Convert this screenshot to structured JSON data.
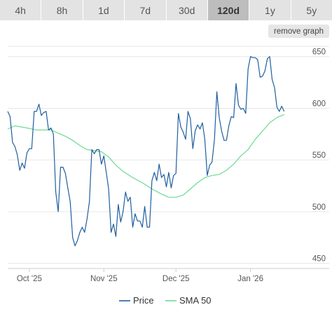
{
  "range_buttons": [
    {
      "label": "4h"
    },
    {
      "label": "8h"
    },
    {
      "label": "1d"
    },
    {
      "label": "7d"
    },
    {
      "label": "30d"
    },
    {
      "label": "120d",
      "active": true
    },
    {
      "label": "1y"
    },
    {
      "label": "5y"
    }
  ],
  "remove_graph_label": "remove graph",
  "colors": {
    "price": "#1f5f9e",
    "sma": "#6cda93",
    "grid": "#e6e6e6",
    "axis": "#cccccc"
  },
  "chart_data": {
    "type": "line",
    "title": "",
    "xlabel": "",
    "ylabel": "",
    "x_axis": {
      "type": "date",
      "ticks": [
        "2025-10-01",
        "2025-11-01",
        "2025-12-01",
        "2026-01-01"
      ],
      "tick_labels": [
        "Oct '25",
        "Nov '25",
        "Dec '25",
        "Jan '26"
      ],
      "range": [
        "2025-09-22",
        "2026-01-25"
      ]
    },
    "y_axis": {
      "ticks": [
        450,
        500,
        550,
        600,
        650
      ],
      "range": [
        445,
        660
      ],
      "side": "right"
    },
    "grid": true,
    "legend": "bottom",
    "series": [
      {
        "name": "Price",
        "color": "#1f5f9e",
        "points": [
          [
            "2025-09-22",
            597
          ],
          [
            "2025-09-23",
            592
          ],
          [
            "2025-09-24",
            567
          ],
          [
            "2025-09-25",
            563
          ],
          [
            "2025-09-26",
            555
          ],
          [
            "2025-09-27",
            540
          ],
          [
            "2025-09-28",
            547
          ],
          [
            "2025-09-29",
            542
          ],
          [
            "2025-09-30",
            557
          ],
          [
            "2025-10-01",
            561
          ],
          [
            "2025-10-02",
            561
          ],
          [
            "2025-10-03",
            597
          ],
          [
            "2025-10-04",
            597
          ],
          [
            "2025-10-05",
            604
          ],
          [
            "2025-10-06",
            593
          ],
          [
            "2025-10-07",
            596
          ],
          [
            "2025-10-08",
            597
          ],
          [
            "2025-10-09",
            579
          ],
          [
            "2025-10-10",
            581
          ],
          [
            "2025-10-11",
            575
          ],
          [
            "2025-10-12",
            519
          ],
          [
            "2025-10-13",
            500
          ],
          [
            "2025-10-14",
            543
          ],
          [
            "2025-10-15",
            543
          ],
          [
            "2025-10-16",
            537
          ],
          [
            "2025-10-17",
            523
          ],
          [
            "2025-10-18",
            510
          ],
          [
            "2025-10-19",
            475
          ],
          [
            "2025-10-20",
            467
          ],
          [
            "2025-10-21",
            472
          ],
          [
            "2025-10-22",
            480
          ],
          [
            "2025-10-23",
            485
          ],
          [
            "2025-10-24",
            480
          ],
          [
            "2025-10-25",
            493
          ],
          [
            "2025-10-26",
            510
          ],
          [
            "2025-10-27",
            560
          ],
          [
            "2025-10-28",
            556
          ],
          [
            "2025-10-29",
            560
          ],
          [
            "2025-10-30",
            560
          ],
          [
            "2025-10-31",
            546
          ],
          [
            "2025-11-01",
            554
          ],
          [
            "2025-11-02",
            538
          ],
          [
            "2025-11-03",
            522
          ],
          [
            "2025-11-04",
            480
          ],
          [
            "2025-11-05",
            488
          ],
          [
            "2025-11-06",
            476
          ],
          [
            "2025-11-07",
            507
          ],
          [
            "2025-11-08",
            490
          ],
          [
            "2025-11-09",
            500
          ],
          [
            "2025-11-10",
            519
          ],
          [
            "2025-11-11",
            510
          ],
          [
            "2025-11-12",
            514
          ],
          [
            "2025-11-13",
            485
          ],
          [
            "2025-11-14",
            498
          ],
          [
            "2025-11-15",
            491
          ],
          [
            "2025-11-16",
            491
          ],
          [
            "2025-11-17",
            485
          ],
          [
            "2025-11-18",
            505
          ],
          [
            "2025-11-19",
            485
          ],
          [
            "2025-11-20",
            485
          ],
          [
            "2025-11-21",
            530
          ],
          [
            "2025-11-22",
            538
          ],
          [
            "2025-11-23",
            530
          ],
          [
            "2025-11-24",
            546
          ],
          [
            "2025-11-25",
            533
          ],
          [
            "2025-11-26",
            536
          ],
          [
            "2025-11-27",
            524
          ],
          [
            "2025-11-28",
            538
          ],
          [
            "2025-11-29",
            523
          ],
          [
            "2025-11-30",
            535
          ],
          [
            "2025-12-01",
            537
          ],
          [
            "2025-12-02",
            595
          ],
          [
            "2025-12-03",
            582
          ],
          [
            "2025-12-04",
            577
          ],
          [
            "2025-12-05",
            570
          ],
          [
            "2025-12-06",
            597
          ],
          [
            "2025-12-07",
            590
          ],
          [
            "2025-12-08",
            561
          ],
          [
            "2025-12-09",
            578
          ],
          [
            "2025-12-10",
            584
          ],
          [
            "2025-12-11",
            580
          ],
          [
            "2025-12-12",
            586
          ],
          [
            "2025-12-13",
            570
          ],
          [
            "2025-12-14",
            535
          ],
          [
            "2025-12-15",
            545
          ],
          [
            "2025-12-16",
            548
          ],
          [
            "2025-12-17",
            570
          ],
          [
            "2025-12-18",
            616
          ],
          [
            "2025-12-19",
            591
          ],
          [
            "2025-12-20",
            578
          ],
          [
            "2025-12-21",
            569
          ],
          [
            "2025-12-22",
            569
          ],
          [
            "2025-12-23",
            583
          ],
          [
            "2025-12-24",
            592
          ],
          [
            "2025-12-25",
            591
          ],
          [
            "2025-12-26",
            624
          ],
          [
            "2025-12-27",
            603
          ],
          [
            "2025-12-28",
            599
          ],
          [
            "2025-12-29",
            600
          ],
          [
            "2025-12-30",
            595
          ],
          [
            "2025-12-31",
            638
          ],
          [
            "2026-01-01",
            650
          ],
          [
            "2026-01-02",
            649
          ],
          [
            "2026-01-03",
            649
          ],
          [
            "2026-01-04",
            647
          ],
          [
            "2026-01-05",
            630
          ],
          [
            "2026-01-06",
            631
          ],
          [
            "2026-01-07",
            636
          ],
          [
            "2026-01-08",
            648
          ],
          [
            "2026-01-09",
            650
          ],
          [
            "2026-01-10",
            628
          ],
          [
            "2026-01-11",
            620
          ],
          [
            "2026-01-12",
            601
          ],
          [
            "2026-01-13",
            597
          ],
          [
            "2026-01-14",
            602
          ],
          [
            "2026-01-15",
            597
          ]
        ]
      },
      {
        "name": "SMA 50",
        "color": "#6cda93",
        "points": [
          [
            "2025-09-22",
            580
          ],
          [
            "2025-09-25",
            583
          ],
          [
            "2025-09-30",
            581
          ],
          [
            "2025-10-04",
            579
          ],
          [
            "2025-10-08",
            579
          ],
          [
            "2025-10-10",
            579
          ],
          [
            "2025-10-13",
            576
          ],
          [
            "2025-10-16",
            573
          ],
          [
            "2025-10-19",
            569
          ],
          [
            "2025-10-22",
            564
          ],
          [
            "2025-10-25",
            560
          ],
          [
            "2025-10-28",
            559
          ],
          [
            "2025-10-31",
            558
          ],
          [
            "2025-11-03",
            553
          ],
          [
            "2025-11-06",
            545
          ],
          [
            "2025-11-09",
            539
          ],
          [
            "2025-11-13",
            533
          ],
          [
            "2025-11-17",
            528
          ],
          [
            "2025-11-21",
            522
          ],
          [
            "2025-11-25",
            517
          ],
          [
            "2025-11-28",
            514
          ],
          [
            "2025-12-01",
            514
          ],
          [
            "2025-12-04",
            516
          ],
          [
            "2025-12-07",
            522
          ],
          [
            "2025-12-10",
            528
          ],
          [
            "2025-12-13",
            533
          ],
          [
            "2025-12-16",
            535
          ],
          [
            "2025-12-19",
            536
          ],
          [
            "2025-12-22",
            540
          ],
          [
            "2025-12-25",
            546
          ],
          [
            "2025-12-28",
            554
          ],
          [
            "2025-12-31",
            560
          ],
          [
            "2026-01-03",
            570
          ],
          [
            "2026-01-06",
            578
          ],
          [
            "2026-01-09",
            586
          ],
          [
            "2026-01-12",
            591
          ],
          [
            "2026-01-15",
            594
          ]
        ]
      }
    ]
  }
}
